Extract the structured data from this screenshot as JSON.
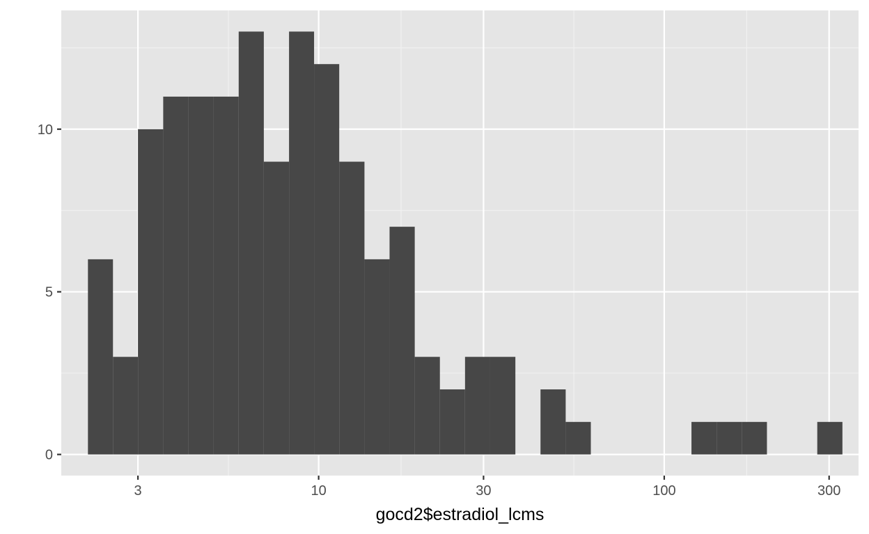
{
  "chart_data": {
    "type": "histogram",
    "x_scale": "log10",
    "xlabel": "gocd2$estradiol_lcms",
    "ylabel": "",
    "title": "",
    "xlim": [
      1.8,
      365
    ],
    "ylim": [
      -0.65,
      13.65
    ],
    "grid": true,
    "legend": "none",
    "x_major_ticks": [
      3,
      10,
      30,
      100,
      300
    ],
    "x_major_labels": [
      "3",
      "10",
      "30",
      "100",
      "300"
    ],
    "x_minor_ticks": [
      1.73,
      5.48,
      17.32,
      54.77,
      173.2
    ],
    "y_major_ticks": [
      0,
      5,
      10
    ],
    "y_major_labels": [
      "0",
      "5",
      "10"
    ],
    "y_minor_ticks": [
      2.5,
      7.5,
      12.5
    ],
    "bins": [
      {
        "x_min": 2.15,
        "x_max": 2.54,
        "count": 6
      },
      {
        "x_min": 2.54,
        "x_max": 3.0,
        "count": 3
      },
      {
        "x_min": 3.0,
        "x_max": 3.55,
        "count": 10
      },
      {
        "x_min": 3.55,
        "x_max": 4.2,
        "count": 11
      },
      {
        "x_min": 4.2,
        "x_max": 4.97,
        "count": 11
      },
      {
        "x_min": 4.97,
        "x_max": 5.87,
        "count": 11
      },
      {
        "x_min": 5.87,
        "x_max": 6.94,
        "count": 13
      },
      {
        "x_min": 6.94,
        "x_max": 8.21,
        "count": 9
      },
      {
        "x_min": 8.21,
        "x_max": 9.7,
        "count": 13
      },
      {
        "x_min": 9.7,
        "x_max": 11.47,
        "count": 12
      },
      {
        "x_min": 11.47,
        "x_max": 13.57,
        "count": 9
      },
      {
        "x_min": 13.57,
        "x_max": 16.04,
        "count": 6
      },
      {
        "x_min": 16.04,
        "x_max": 18.97,
        "count": 7
      },
      {
        "x_min": 18.97,
        "x_max": 22.43,
        "count": 3
      },
      {
        "x_min": 22.43,
        "x_max": 26.52,
        "count": 2
      },
      {
        "x_min": 26.52,
        "x_max": 31.36,
        "count": 3
      },
      {
        "x_min": 31.36,
        "x_max": 37.09,
        "count": 3
      },
      {
        "x_min": 37.09,
        "x_max": 43.85,
        "count": 0
      },
      {
        "x_min": 43.85,
        "x_max": 51.86,
        "count": 2
      },
      {
        "x_min": 51.86,
        "x_max": 61.32,
        "count": 1
      },
      {
        "x_min": 61.32,
        "x_max": 72.51,
        "count": 0
      },
      {
        "x_min": 72.51,
        "x_max": 85.74,
        "count": 0
      },
      {
        "x_min": 85.74,
        "x_max": 101.39,
        "count": 0
      },
      {
        "x_min": 101.39,
        "x_max": 119.9,
        "count": 0
      },
      {
        "x_min": 119.9,
        "x_max": 141.78,
        "count": 1
      },
      {
        "x_min": 141.78,
        "x_max": 167.65,
        "count": 1
      },
      {
        "x_min": 167.65,
        "x_max": 198.25,
        "count": 1
      },
      {
        "x_min": 198.25,
        "x_max": 234.43,
        "count": 0
      },
      {
        "x_min": 234.43,
        "x_max": 277.22,
        "count": 0
      },
      {
        "x_min": 277.22,
        "x_max": 327.81,
        "count": 1
      }
    ],
    "colors": {
      "panel_background": "#e5e5e5",
      "grid_major": "#ffffff",
      "grid_minor": "#f2f2f2",
      "bar_fill": "#474747",
      "tick_mark": "#333333",
      "tick_label": "#4d4d4d",
      "axis_title": "#000000"
    }
  }
}
